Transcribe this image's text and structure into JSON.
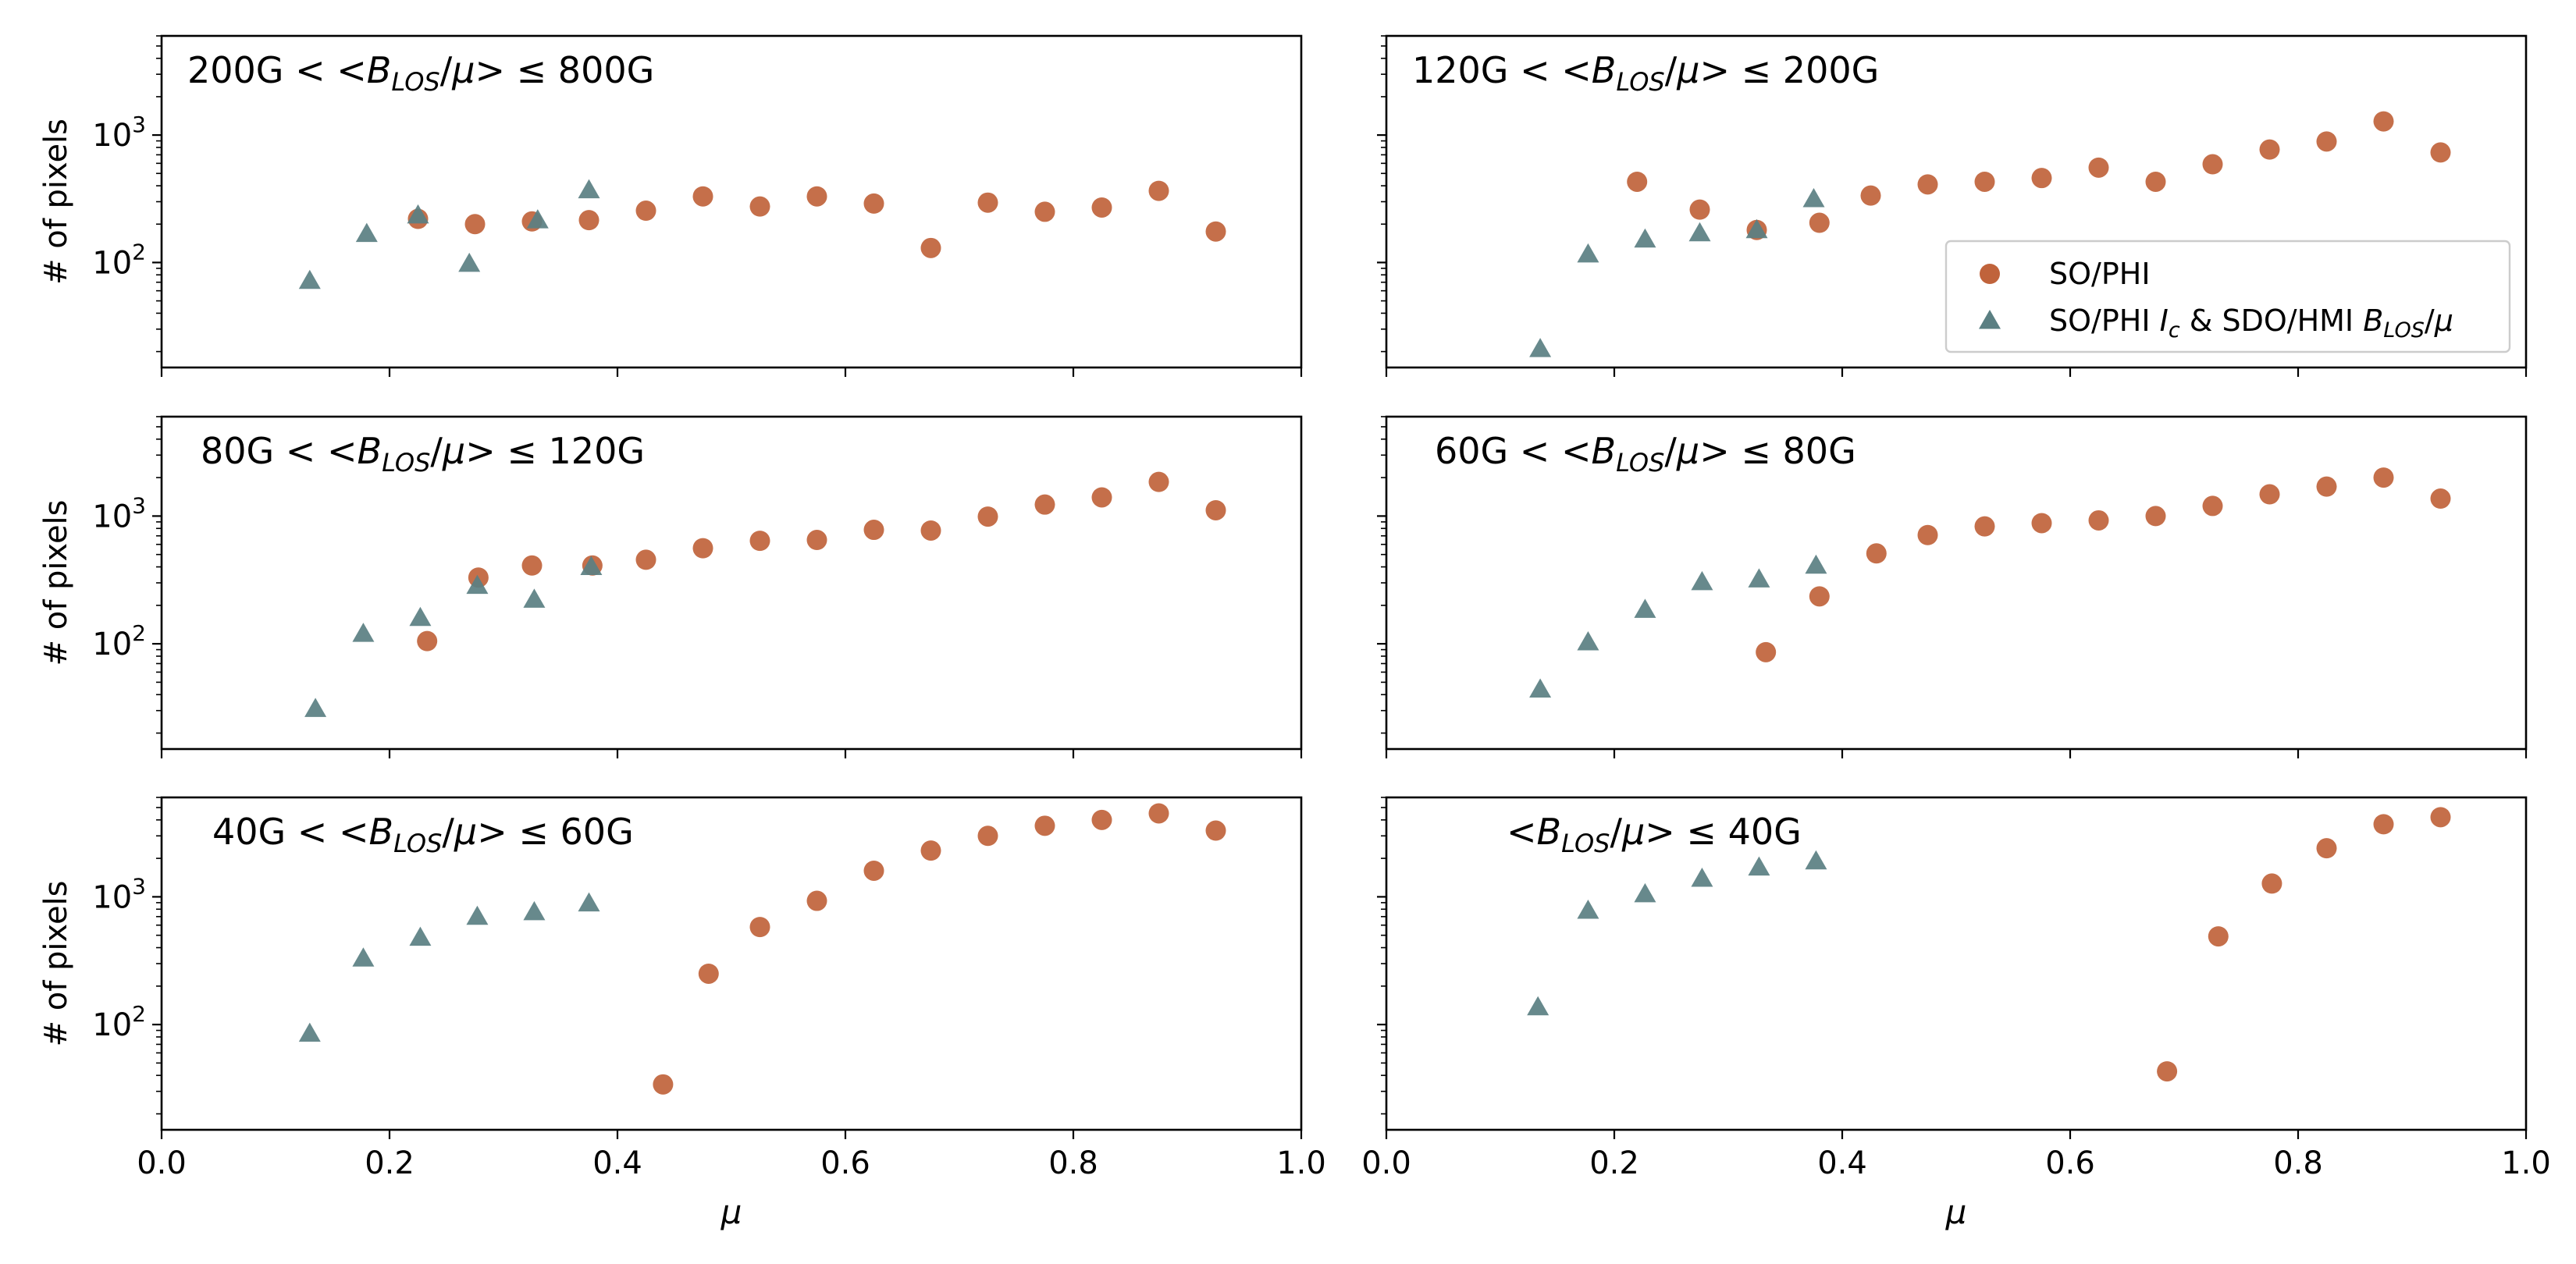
{
  "figure": {
    "xlabel": "μ",
    "ylabel": "# of pixels",
    "colors": {
      "so_phi": "#c0633b",
      "combined": "#5a7f82"
    }
  },
  "legend": {
    "location": "lower-right of top-right panel",
    "entries": [
      {
        "marker": "circle",
        "label": "SO/PHI"
      },
      {
        "marker": "triangle",
        "label": "SO/PHI I_c & SDO/HMI B_LOS/μ"
      }
    ]
  },
  "chart_data": [
    {
      "type": "scatter",
      "yscale": "log",
      "xlim": [
        0.0,
        1.0
      ],
      "ylim": [
        15,
        6000
      ],
      "title": "200G < <B_LOS/μ> ≤ 800G",
      "xlabel": "",
      "ylabel": "# of pixels",
      "series": [
        {
          "name": "SO/PHI",
          "marker": "circle",
          "x": [
            0.225,
            0.275,
            0.325,
            0.375,
            0.425,
            0.475,
            0.525,
            0.575,
            0.625,
            0.675,
            0.725,
            0.775,
            0.825,
            0.875,
            0.925
          ],
          "y": [
            220,
            200,
            210,
            215,
            255,
            330,
            275,
            330,
            290,
            130,
            295,
            250,
            270,
            365,
            175
          ]
        },
        {
          "name": "SO/PHI I_c & SDO/HMI B_LOS/μ",
          "marker": "triangle",
          "x": [
            0.13,
            0.18,
            0.225,
            0.27,
            0.33,
            0.375
          ],
          "y": [
            72,
            168,
            235,
            98,
            215,
            370
          ]
        }
      ]
    },
    {
      "type": "scatter",
      "yscale": "log",
      "xlim": [
        0.0,
        1.0
      ],
      "ylim": [
        15,
        6000
      ],
      "title": "120G < <B_LOS/μ> ≤ 200G",
      "xlabel": "",
      "ylabel": "",
      "series": [
        {
          "name": "SO/PHI",
          "marker": "circle",
          "x": [
            0.22,
            0.275,
            0.325,
            0.38,
            0.425,
            0.475,
            0.525,
            0.575,
            0.625,
            0.675,
            0.725,
            0.775,
            0.825,
            0.875,
            0.925
          ],
          "y": [
            430,
            260,
            180,
            205,
            335,
            410,
            430,
            460,
            555,
            430,
            590,
            770,
            890,
            1280,
            730
          ]
        },
        {
          "name": "SO/PHI I_c & SDO/HMI B_LOS/μ",
          "marker": "triangle",
          "x": [
            0.135,
            0.177,
            0.227,
            0.275,
            0.325,
            0.375
          ],
          "y": [
            21,
            116,
            152,
            170,
            180,
            315
          ]
        }
      ]
    },
    {
      "type": "scatter",
      "yscale": "log",
      "xlim": [
        0.0,
        1.0
      ],
      "ylim": [
        15,
        6000
      ],
      "title": "80G < <B_LOS/μ> ≤ 120G",
      "xlabel": "",
      "ylabel": "# of pixels",
      "series": [
        {
          "name": "SO/PHI",
          "marker": "circle",
          "x": [
            0.233,
            0.278,
            0.325,
            0.378,
            0.425,
            0.475,
            0.525,
            0.575,
            0.625,
            0.675,
            0.725,
            0.775,
            0.825,
            0.875,
            0.925
          ],
          "y": [
            105,
            330,
            410,
            410,
            455,
            560,
            640,
            650,
            780,
            770,
            990,
            1230,
            1400,
            1850,
            1110
          ]
        },
        {
          "name": "SO/PHI I_c & SDO/HMI B_LOS/μ",
          "marker": "triangle",
          "x": [
            0.135,
            0.177,
            0.227,
            0.277,
            0.327,
            0.377
          ],
          "y": [
            31,
            120,
            160,
            285,
            222,
            400
          ]
        }
      ]
    },
    {
      "type": "scatter",
      "yscale": "log",
      "xlim": [
        0.0,
        1.0
      ],
      "ylim": [
        15,
        6000
      ],
      "title": "60G < <B_LOS/μ> ≤ 80G",
      "xlabel": "",
      "ylabel": "",
      "series": [
        {
          "name": "SO/PHI",
          "marker": "circle",
          "x": [
            0.333,
            0.38,
            0.43,
            0.475,
            0.525,
            0.575,
            0.625,
            0.675,
            0.725,
            0.775,
            0.825,
            0.875,
            0.925
          ],
          "y": [
            86,
            235,
            510,
            710,
            830,
            880,
            925,
            1000,
            1200,
            1480,
            1700,
            2000,
            1370
          ]
        },
        {
          "name": "SO/PHI I_c & SDO/HMI B_LOS/μ",
          "marker": "triangle",
          "x": [
            0.135,
            0.177,
            0.227,
            0.277,
            0.327,
            0.377
          ],
          "y": [
            44,
            103,
            185,
            305,
            320,
            410
          ]
        }
      ]
    },
    {
      "type": "scatter",
      "yscale": "log",
      "xlim": [
        0.0,
        1.0
      ],
      "ylim": [
        15,
        6000
      ],
      "title": "40G < <B_LOS/μ> ≤ 60G",
      "xlabel": "μ",
      "ylabel": "# of pixels",
      "series": [
        {
          "name": "SO/PHI",
          "marker": "circle",
          "x": [
            0.44,
            0.48,
            0.525,
            0.575,
            0.625,
            0.675,
            0.725,
            0.775,
            0.825,
            0.875,
            0.925
          ],
          "y": [
            34,
            250,
            580,
            930,
            1600,
            2300,
            3000,
            3600,
            4000,
            4500,
            3300
          ]
        },
        {
          "name": "SO/PHI I_c & SDO/HMI B_LOS/μ",
          "marker": "triangle",
          "x": [
            0.13,
            0.177,
            0.227,
            0.277,
            0.327,
            0.375
          ],
          "y": [
            85,
            330,
            480,
            700,
            760,
            890
          ]
        }
      ]
    },
    {
      "type": "scatter",
      "yscale": "log",
      "xlim": [
        0.0,
        1.0
      ],
      "ylim": [
        15,
        6000
      ],
      "title": "<B_LOS/μ> ≤ 40G",
      "xlabel": "μ",
      "ylabel": "",
      "series": [
        {
          "name": "SO/PHI",
          "marker": "circle",
          "x": [
            0.685,
            0.73,
            0.777,
            0.825,
            0.875,
            0.925
          ],
          "y": [
            43,
            490,
            1270,
            2400,
            3700,
            4200
          ]
        },
        {
          "name": "SO/PHI I_c & SDO/HMI B_LOS/μ",
          "marker": "triangle",
          "x": [
            0.133,
            0.177,
            0.227,
            0.277,
            0.327,
            0.377
          ],
          "y": [
            137,
            780,
            1050,
            1390,
            1700,
            1900
          ]
        }
      ]
    }
  ]
}
